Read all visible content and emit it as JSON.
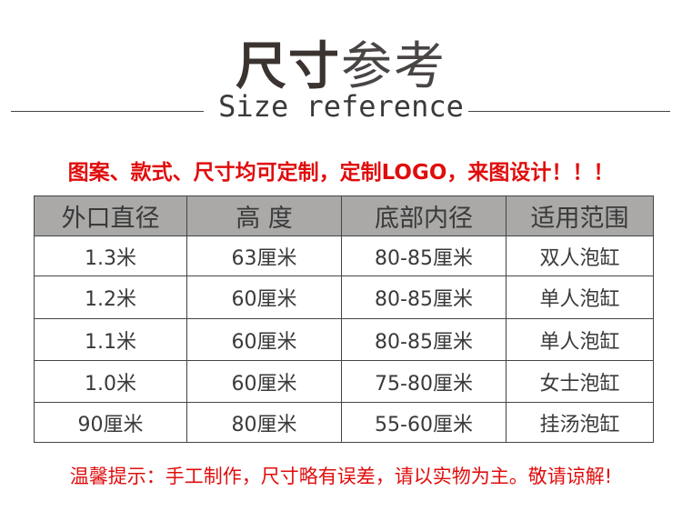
{
  "title": {
    "bold": "尺寸",
    "light": "参考"
  },
  "subtitle": "Size reference",
  "notice": "图案、款式、尺寸均可定制，定制LOGO，来图设计！！！",
  "table": {
    "headers": [
      "外口直径",
      "高 度",
      "底部内径",
      "适用范围"
    ],
    "rows": [
      [
        "1.3米",
        "63厘米",
        "80-85厘米",
        "双人泡缸"
      ],
      [
        "1.2米",
        "60厘米",
        "80-85厘米",
        "单人泡缸"
      ],
      [
        "1.1米",
        "60厘米",
        "80-85厘米",
        "单人泡缸"
      ],
      [
        "1.0米",
        "60厘米",
        "75-80厘米",
        "女士泡缸"
      ],
      [
        "90厘米",
        "80厘米",
        "55-60厘米",
        "挂汤泡缸"
      ]
    ]
  },
  "footer": {
    "label": "温馨提示：",
    "text": "手工制作，尺寸略有误差，请以实物为主。敬请谅解!"
  },
  "colors": {
    "accent": "#e00d0d",
    "header_bg": "#aaa9a8",
    "text": "#3a3a3a"
  }
}
